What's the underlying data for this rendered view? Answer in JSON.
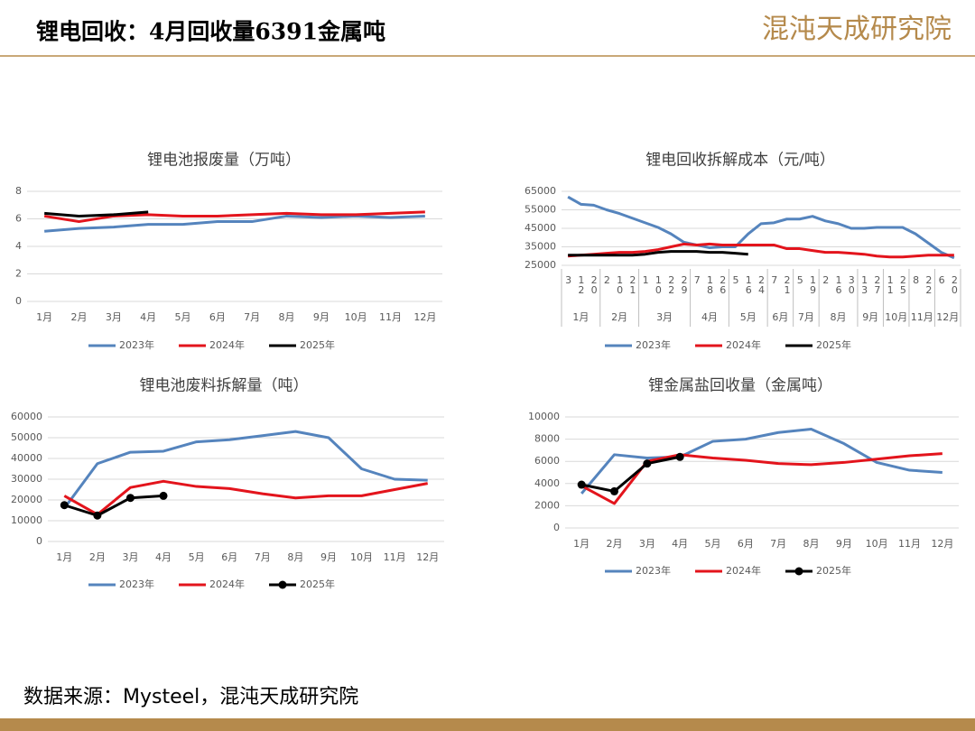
{
  "header": {
    "title": "锂电回收：4月回收量6391金属吨",
    "logo": "混沌天成研究院"
  },
  "footer": {
    "source": "数据来源：Mysteel，混沌天成研究院"
  },
  "chart_data": [
    {
      "type": "line",
      "title": "锂电池报废量（万吨）",
      "categories": [
        "1月",
        "2月",
        "3月",
        "4月",
        "5月",
        "6月",
        "7月",
        "8月",
        "9月",
        "10月",
        "11月",
        "12月"
      ],
      "ylim": [
        0,
        8
      ],
      "yticks": [
        0,
        2,
        4,
        6,
        8
      ],
      "grid": true,
      "legend": "bottom",
      "series": [
        {
          "name": "2023年",
          "color": "#5584bd",
          "values": [
            5.1,
            5.3,
            5.4,
            5.6,
            5.6,
            5.8,
            5.8,
            6.2,
            6.1,
            6.2,
            6.1,
            6.2
          ]
        },
        {
          "name": "2024年",
          "color": "#e3141c",
          "values": [
            6.2,
            5.8,
            6.2,
            6.3,
            6.2,
            6.2,
            6.3,
            6.4,
            6.3,
            6.3,
            6.4,
            6.5
          ]
        },
        {
          "name": "2025年",
          "color": "#000000",
          "values": [
            6.4,
            6.2,
            6.3,
            6.5,
            null,
            null,
            null,
            null,
            null,
            null,
            null,
            null
          ]
        }
      ]
    },
    {
      "type": "line",
      "title": "锂电回收拆解成本（元/吨）",
      "categories": [
        [
          "1月",
          "3"
        ],
        [
          "1月",
          "12"
        ],
        [
          "1月",
          "20"
        ],
        [
          "2月",
          "2"
        ],
        [
          "2月",
          "10"
        ],
        [
          "2月",
          "21"
        ],
        [
          "3月",
          "1"
        ],
        [
          "3月",
          "10"
        ],
        [
          "3月",
          "22"
        ],
        [
          "3月",
          "29"
        ],
        [
          "4月",
          "7"
        ],
        [
          "4月",
          "18"
        ],
        [
          "4月",
          "26"
        ],
        [
          "5月",
          "5"
        ],
        [
          "5月",
          "16"
        ],
        [
          "5月",
          "24"
        ],
        [
          "6月",
          "7"
        ],
        [
          "6月",
          "21"
        ],
        [
          "7月",
          "5"
        ],
        [
          "7月",
          "19"
        ],
        [
          "8月",
          "2"
        ],
        [
          "8月",
          "16"
        ],
        [
          "8月",
          "30"
        ],
        [
          "9月",
          "13"
        ],
        [
          "9月",
          "27"
        ],
        [
          "10月",
          "11"
        ],
        [
          "10月",
          "25"
        ],
        [
          "11月",
          "8"
        ],
        [
          "11月",
          "22"
        ],
        [
          "12月",
          "6"
        ],
        [
          "12月",
          "20"
        ]
      ],
      "ylim": [
        25000,
        65000
      ],
      "yticks": [
        25000,
        35000,
        45000,
        55000,
        65000
      ],
      "grid": true,
      "legend": "bottom",
      "series": [
        {
          "name": "2023年",
          "color": "#5584bd",
          "values": [
            62000,
            58000,
            57500,
            55000,
            53000,
            50500,
            48000,
            45500,
            42000,
            37500,
            36000,
            34500,
            35000,
            35000,
            42000,
            47500,
            48000,
            50000,
            50000,
            51500,
            49000,
            47500,
            45000,
            45000,
            45500,
            45500,
            45500,
            42000,
            37000,
            32000,
            29000
          ]
        },
        {
          "name": "2024年",
          "color": "#e3141c",
          "values": [
            30000,
            30500,
            31000,
            31500,
            32000,
            32000,
            32500,
            33500,
            35000,
            36500,
            36000,
            36500,
            36000,
            36000,
            36000,
            36000,
            36000,
            34000,
            34000,
            33000,
            32000,
            32000,
            31500,
            31000,
            30000,
            29500,
            29500,
            30000,
            30500,
            30500,
            30500
          ]
        },
        {
          "name": "2025年",
          "color": "#000000",
          "values": [
            30500,
            30500,
            30500,
            30500,
            30500,
            30500,
            31000,
            32000,
            32500,
            32500,
            32500,
            32000,
            32000,
            31500,
            31000,
            null,
            null,
            null,
            null,
            null,
            null,
            null,
            null,
            null,
            null,
            null,
            null,
            null,
            null,
            null,
            null
          ]
        }
      ]
    },
    {
      "type": "line",
      "title": "锂电池废料拆解量（吨）",
      "categories": [
        "1月",
        "2月",
        "3月",
        "4月",
        "5月",
        "6月",
        "7月",
        "8月",
        "9月",
        "10月",
        "11月",
        "12月"
      ],
      "ylim": [
        0,
        60000
      ],
      "yticks": [
        0,
        10000,
        20000,
        30000,
        40000,
        50000,
        60000
      ],
      "grid": true,
      "legend": "bottom",
      "series": [
        {
          "name": "2023年",
          "color": "#5584bd",
          "values": [
            16000,
            37500,
            43000,
            43500,
            48000,
            49000,
            51000,
            53000,
            50000,
            35000,
            30000,
            29500
          ]
        },
        {
          "name": "2024年",
          "color": "#e3141c",
          "values": [
            22000,
            13000,
            26000,
            29000,
            26500,
            25500,
            23000,
            21000,
            22000,
            22000,
            25000,
            28000
          ]
        },
        {
          "name": "2025年",
          "color": "#000000",
          "marker": true,
          "values": [
            17500,
            12500,
            21000,
            22000,
            null,
            null,
            null,
            null,
            null,
            null,
            null,
            null
          ]
        }
      ]
    },
    {
      "type": "line",
      "title": "锂金属盐回收量（金属吨）",
      "categories": [
        "1月",
        "2月",
        "3月",
        "4月",
        "5月",
        "6月",
        "7月",
        "8月",
        "9月",
        "10月",
        "11月",
        "12月"
      ],
      "ylim": [
        0,
        10000
      ],
      "yticks": [
        0,
        2000,
        4000,
        6000,
        8000,
        10000
      ],
      "grid": true,
      "legend": "bottom",
      "series": [
        {
          "name": "2023年",
          "color": "#5584bd",
          "values": [
            3100,
            6600,
            6300,
            6400,
            7800,
            8000,
            8600,
            8900,
            7600,
            5900,
            5200,
            5000
          ]
        },
        {
          "name": "2024年",
          "color": "#e3141c",
          "values": [
            3800,
            2200,
            6000,
            6600,
            6300,
            6100,
            5800,
            5700,
            5900,
            6200,
            6500,
            6700
          ]
        },
        {
          "name": "2025年",
          "color": "#000000",
          "marker": true,
          "values": [
            3900,
            3300,
            5800,
            6400,
            null,
            null,
            null,
            null,
            null,
            null,
            null,
            null
          ]
        }
      ]
    }
  ]
}
